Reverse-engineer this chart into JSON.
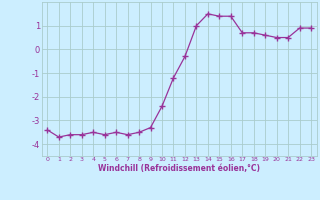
{
  "x": [
    0,
    1,
    2,
    3,
    4,
    5,
    6,
    7,
    8,
    9,
    10,
    11,
    12,
    13,
    14,
    15,
    16,
    17,
    18,
    19,
    20,
    21,
    22,
    23
  ],
  "y": [
    -3.4,
    -3.7,
    -3.6,
    -3.6,
    -3.5,
    -3.6,
    -3.5,
    -3.6,
    -3.5,
    -3.3,
    -2.4,
    -1.2,
    -0.3,
    1.0,
    1.5,
    1.4,
    1.4,
    0.7,
    0.7,
    0.6,
    0.5,
    0.5,
    0.9,
    0.9
  ],
  "line_color": "#993399",
  "marker": "+",
  "bg_color": "#cceeff",
  "grid_color": "#aacccc",
  "xlabel": "Windchill (Refroidissement éolien,°C)",
  "xlabel_color": "#993399",
  "tick_color": "#993399",
  "ylim": [
    -4.5,
    2.0
  ],
  "xlim": [
    -0.5,
    23.5
  ],
  "yticks": [
    -4,
    -3,
    -2,
    -1,
    0,
    1
  ],
  "xticks": [
    0,
    1,
    2,
    3,
    4,
    5,
    6,
    7,
    8,
    9,
    10,
    11,
    12,
    13,
    14,
    15,
    16,
    17,
    18,
    19,
    20,
    21,
    22,
    23
  ]
}
